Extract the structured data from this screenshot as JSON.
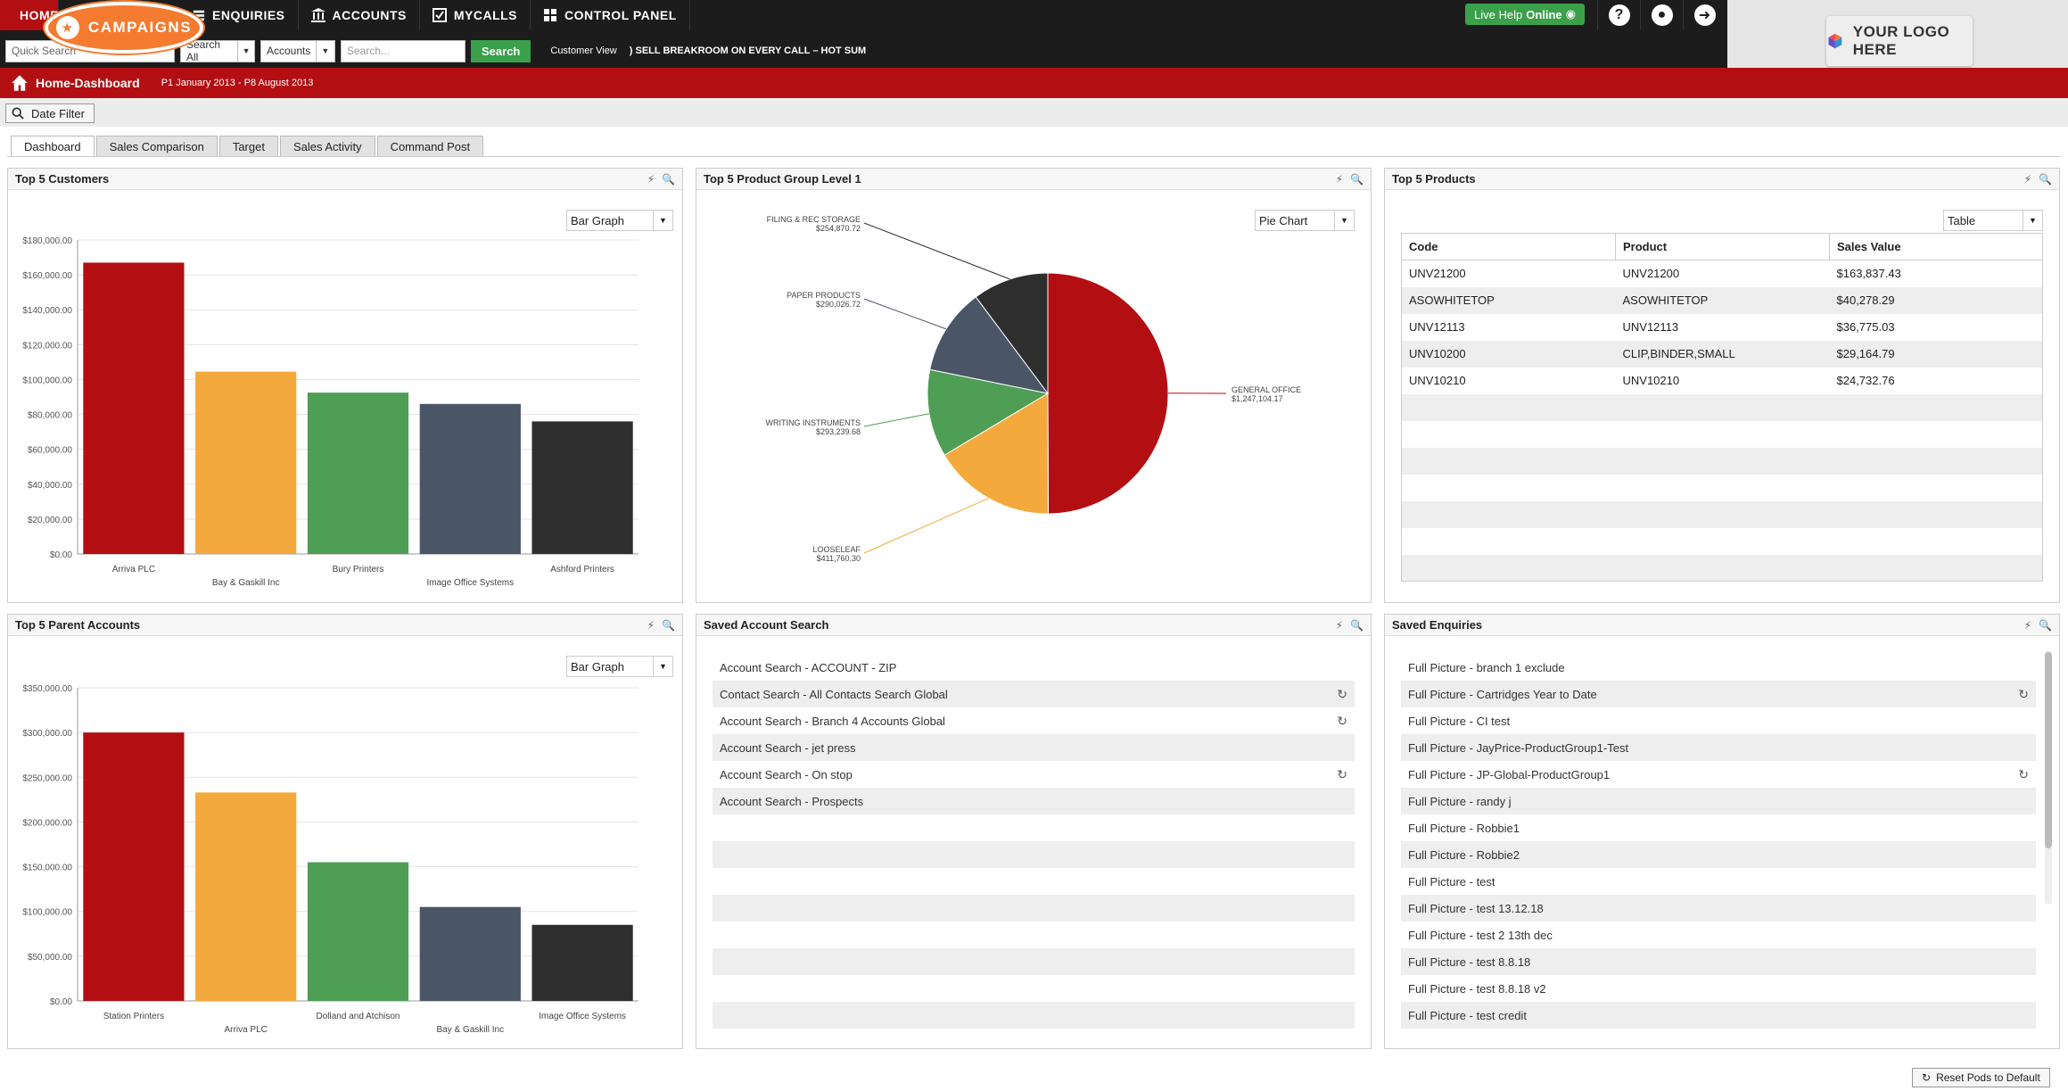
{
  "nav": {
    "home": "HOME",
    "campaigns": "CAMPAIGNS",
    "enquiries": "ENQUIRIES",
    "accounts": "ACCOUNTS",
    "mycalls": "MYCALLS",
    "control_panel": "CONTROL PANEL",
    "live_help": "Live Help",
    "live_status": "Online"
  },
  "search": {
    "quick_placeholder": "Quick Search",
    "search_all": "Search All",
    "accounts": "Accounts",
    "placeholder": "Search...",
    "button": "Search",
    "customer_view": "Customer View",
    "ticker": ") SELL BREAKROOM ON EVERY CALL – HOT SUM"
  },
  "logo": "YOUR LOGO HERE",
  "header": {
    "title": "Home-Dashboard",
    "range": "P1 January 2013 - P8 August 2013"
  },
  "date_filter": "Date Filter",
  "tabs": [
    "Dashboard",
    "Sales Comparison",
    "Target",
    "Sales Activity",
    "Command Post"
  ],
  "colors": {
    "red": "#b30f12",
    "orange": "#f4a93c",
    "green": "#4e9e55",
    "slate": "#4a5566",
    "dark": "#2e2e2e",
    "campaign": "#f47b30"
  },
  "pods": {
    "customers": {
      "title": "Top 5 Customers",
      "view": "Bar Graph"
    },
    "product_group": {
      "title": "Top 5 Product Group Level 1",
      "view": "Pie Chart"
    },
    "products": {
      "title": "Top 5 Products",
      "view": "Table"
    },
    "parents": {
      "title": "Top 5 Parent Accounts",
      "view": "Bar Graph"
    },
    "account_search": {
      "title": "Saved Account Search"
    },
    "enquiries": {
      "title": "Saved Enquiries"
    }
  },
  "chart_data": [
    {
      "type": "bar",
      "title": "Top 5 Customers",
      "categories": [
        "Arriva PLC",
        "Bay & Gaskill Inc",
        "Bury Printers",
        "Image Office Systems",
        "Ashford Printers"
      ],
      "values": [
        167000,
        104500,
        92500,
        86000,
        76000
      ],
      "ylim": [
        0,
        180000
      ],
      "yticks": [
        "$0.00",
        "$20,000.00",
        "$40,000.00",
        "$60,000.00",
        "$80,000.00",
        "$100,000.00",
        "$120,000.00",
        "$140,000.00",
        "$160,000.00",
        "$180,000.00"
      ],
      "grid": true
    },
    {
      "type": "pie",
      "title": "Top 5 Product Group Level 1",
      "slices": [
        {
          "label": "GENERAL OFFICE",
          "amount": "$1,247,104.17",
          "value": 1247104.17
        },
        {
          "label": "LOOSELEAF",
          "amount": "$411,760.30",
          "value": 411760.3
        },
        {
          "label": "WRITING INSTRUMENTS",
          "amount": "$293,239.68",
          "value": 293239.68
        },
        {
          "label": "PAPER PRODUCTS",
          "amount": "$290,026.72",
          "value": 290026.72
        },
        {
          "label": "FILING & REC STORAGE",
          "amount": "$254,870.72",
          "value": 254870.72
        }
      ]
    },
    {
      "type": "bar",
      "title": "Top 5 Parent Accounts",
      "categories": [
        "Station Printers",
        "Arriva PLC",
        "Dolland and Atchison",
        "Bay & Gaskill Inc",
        "Image Office Systems"
      ],
      "values": [
        300000,
        233000,
        155000,
        105000,
        85000
      ],
      "ylim": [
        0,
        350000
      ],
      "yticks": [
        "$0.00",
        "$50,000.00",
        "$100,000.00",
        "$150,000.00",
        "$200,000.00",
        "$250,000.00",
        "$300,000.00",
        "$350,000.00"
      ],
      "grid": true
    },
    {
      "type": "table",
      "title": "Top 5 Products",
      "columns": [
        "Code",
        "Product",
        "Sales Value"
      ],
      "rows": [
        [
          "UNV21200",
          "UNV21200",
          "$163,837.43"
        ],
        [
          "ASOWHITETOP",
          "ASOWHITETOP",
          "$40,278.29"
        ],
        [
          "UNV12113",
          "UNV12113",
          "$36,775.03"
        ],
        [
          "UNV10200",
          "CLIP,BINDER,SMALL",
          "$29,164.79"
        ],
        [
          "UNV10210",
          "UNV10210",
          "$24,732.76"
        ]
      ]
    }
  ],
  "saved_account_search": [
    {
      "label": "Account Search - ACCOUNT - ZIP",
      "global": false
    },
    {
      "label": "Contact Search - All Contacts Search Global",
      "global": true
    },
    {
      "label": "Account Search - Branch 4 Accounts Global",
      "global": true
    },
    {
      "label": "Account Search - jet press",
      "global": false
    },
    {
      "label": "Account Search - On stop",
      "global": true
    },
    {
      "label": "Account Search - Prospects",
      "global": false
    }
  ],
  "saved_enquiries": [
    {
      "label": "Full Picture - branch 1 exclude",
      "global": false
    },
    {
      "label": "Full Picture - Cartridges Year to Date",
      "global": true
    },
    {
      "label": "Full Picture - CI test",
      "global": false
    },
    {
      "label": "Full Picture - JayPrice-ProductGroup1-Test",
      "global": false
    },
    {
      "label": "Full Picture - JP-Global-ProductGroup1",
      "global": true
    },
    {
      "label": "Full Picture - randy j",
      "global": false
    },
    {
      "label": "Full Picture - Robbie1",
      "global": false
    },
    {
      "label": "Full Picture - Robbie2",
      "global": false
    },
    {
      "label": "Full Picture - test",
      "global": false
    },
    {
      "label": "Full Picture - test 13.12.18",
      "global": false
    },
    {
      "label": "Full Picture - test 2 13th dec",
      "global": false
    },
    {
      "label": "Full Picture - test 8.8.18",
      "global": false
    },
    {
      "label": "Full Picture - test 8.8.18 v2",
      "global": false
    },
    {
      "label": "Full Picture - test credit",
      "global": false
    }
  ],
  "reset_button": "Reset Pods to Default"
}
